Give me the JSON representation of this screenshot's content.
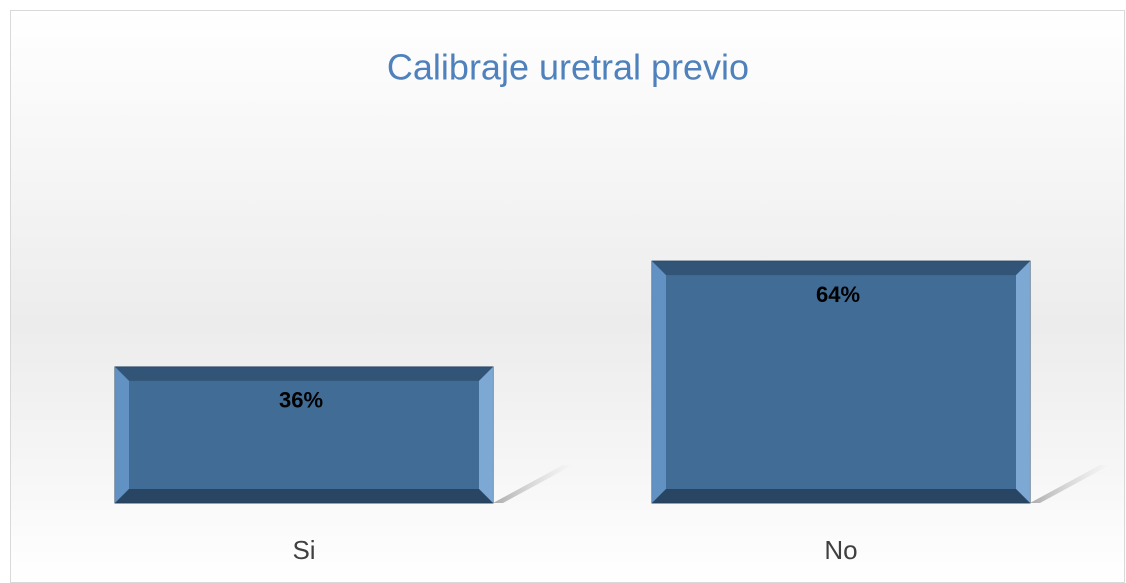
{
  "chart_data": {
    "type": "bar",
    "title": "Calibraje uretral previo",
    "categories": [
      "Si",
      "No"
    ],
    "values": [
      36,
      64
    ],
    "value_labels": [
      "36%",
      "64%"
    ],
    "color": "#3f6a92",
    "title_color": "#4f81bd"
  }
}
